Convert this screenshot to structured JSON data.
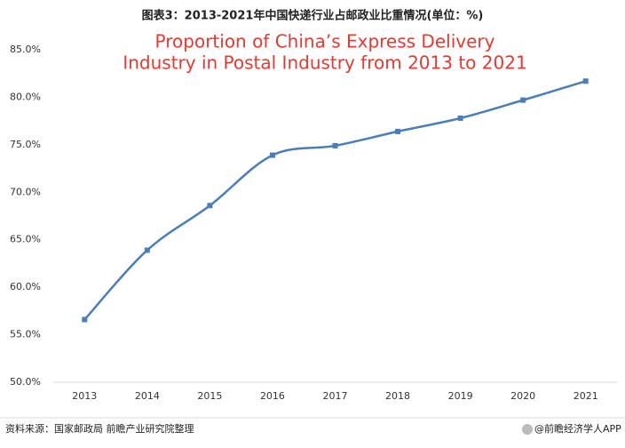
{
  "chart_data": {
    "type": "line",
    "title": "图表3：2013-2021年中国快递行业占邮政业比重情况(单位：%)",
    "subtitle": [
      "Proportion of China’s Express Delivery",
      "Industry in Postal Industry from 2013 to 2021"
    ],
    "categories": [
      "2013",
      "2014",
      "2015",
      "2016",
      "2017",
      "2018",
      "2019",
      "2020",
      "2021"
    ],
    "values": [
      56.6,
      63.9,
      68.6,
      73.9,
      74.9,
      76.4,
      77.8,
      79.7,
      81.7
    ],
    "color": "#4a7ebb",
    "ylim": [
      50,
      85
    ],
    "yticks": [
      {
        "value": 50,
        "label": "50.0%"
      },
      {
        "value": 55,
        "label": "55.0%"
      },
      {
        "value": 60,
        "label": "60.0%"
      },
      {
        "value": 65,
        "label": "65.0%"
      },
      {
        "value": 70,
        "label": "70.0%"
      },
      {
        "value": 75,
        "label": "75.0%"
      },
      {
        "value": 80,
        "label": "80.0%"
      },
      {
        "value": 85,
        "label": "85.0%"
      }
    ],
    "grid": false
  },
  "footer": {
    "source": "资料来源：国家邮政局 前瞻产业研究院整理",
    "credit": "@前瞻经济学人APP"
  }
}
